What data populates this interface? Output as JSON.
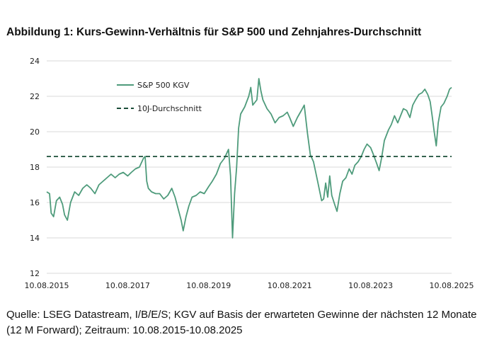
{
  "title": "Abbildung 1: Kurs-Gewinn-Verhältnis für S&P 500 und Zehnjahres-Durchschnitt",
  "caption": "Quelle: LSEG Datastream, I/B/E/S; KGV auf Basis der erwarteten Gewinne der nächsten 12 Monate (12 M Forward); Zeitraum: 10.08.2015-10.08.2025",
  "colors": {
    "series": "#4e9b7b",
    "average": "#1a4d38",
    "grid": "#d9d9d9"
  },
  "chart_data": {
    "type": "line",
    "title": "",
    "xlabel": "",
    "ylabel": "",
    "ylim": [
      12,
      24
    ],
    "yticks": [
      12,
      14,
      16,
      18,
      20,
      22,
      24
    ],
    "xlim": [
      2015.61,
      2025.61
    ],
    "xticks": [
      {
        "x": 2015.61,
        "label": "10.08.2015"
      },
      {
        "x": 2017.61,
        "label": "10.08.2017"
      },
      {
        "x": 2019.61,
        "label": "10.08.2019"
      },
      {
        "x": 2021.61,
        "label": "10.08.2021"
      },
      {
        "x": 2023.61,
        "label": "10.08.2023"
      },
      {
        "x": 2025.61,
        "label": "10.08.2025"
      }
    ],
    "grid": "horizontal",
    "legend_position": "top-left",
    "series": [
      {
        "name": "S&P 500 KGV",
        "style": "solid",
        "points": [
          [
            2015.61,
            16.6
          ],
          [
            2015.68,
            16.5
          ],
          [
            2015.72,
            15.4
          ],
          [
            2015.78,
            15.2
          ],
          [
            2015.85,
            16.1
          ],
          [
            2015.93,
            16.3
          ],
          [
            2016.0,
            15.9
          ],
          [
            2016.05,
            15.3
          ],
          [
            2016.12,
            15.0
          ],
          [
            2016.2,
            16.0
          ],
          [
            2016.3,
            16.6
          ],
          [
            2016.4,
            16.4
          ],
          [
            2016.5,
            16.8
          ],
          [
            2016.6,
            17.0
          ],
          [
            2016.7,
            16.8
          ],
          [
            2016.8,
            16.5
          ],
          [
            2016.9,
            17.0
          ],
          [
            2017.0,
            17.2
          ],
          [
            2017.1,
            17.4
          ],
          [
            2017.2,
            17.6
          ],
          [
            2017.3,
            17.4
          ],
          [
            2017.4,
            17.6
          ],
          [
            2017.5,
            17.7
          ],
          [
            2017.61,
            17.5
          ],
          [
            2017.7,
            17.7
          ],
          [
            2017.8,
            17.9
          ],
          [
            2017.9,
            18.0
          ],
          [
            2018.0,
            18.5
          ],
          [
            2018.04,
            18.6
          ],
          [
            2018.08,
            17.2
          ],
          [
            2018.12,
            16.8
          ],
          [
            2018.2,
            16.6
          ],
          [
            2018.3,
            16.5
          ],
          [
            2018.4,
            16.5
          ],
          [
            2018.5,
            16.2
          ],
          [
            2018.6,
            16.4
          ],
          [
            2018.7,
            16.8
          ],
          [
            2018.78,
            16.3
          ],
          [
            2018.85,
            15.7
          ],
          [
            2018.93,
            15.0
          ],
          [
            2018.98,
            14.4
          ],
          [
            2019.05,
            15.2
          ],
          [
            2019.12,
            15.8
          ],
          [
            2019.2,
            16.3
          ],
          [
            2019.3,
            16.4
          ],
          [
            2019.4,
            16.6
          ],
          [
            2019.5,
            16.5
          ],
          [
            2019.61,
            16.9
          ],
          [
            2019.7,
            17.2
          ],
          [
            2019.8,
            17.6
          ],
          [
            2019.9,
            18.2
          ],
          [
            2020.0,
            18.5
          ],
          [
            2020.1,
            19.0
          ],
          [
            2020.15,
            17.5
          ],
          [
            2020.2,
            14.0
          ],
          [
            2020.25,
            16.5
          ],
          [
            2020.3,
            18.0
          ],
          [
            2020.35,
            20.2
          ],
          [
            2020.4,
            21.0
          ],
          [
            2020.5,
            21.4
          ],
          [
            2020.6,
            22.0
          ],
          [
            2020.65,
            22.5
          ],
          [
            2020.7,
            21.5
          ],
          [
            2020.8,
            21.8
          ],
          [
            2020.85,
            23.0
          ],
          [
            2020.9,
            22.3
          ],
          [
            2020.95,
            21.8
          ],
          [
            2021.05,
            21.3
          ],
          [
            2021.15,
            21.0
          ],
          [
            2021.25,
            20.5
          ],
          [
            2021.35,
            20.8
          ],
          [
            2021.45,
            20.9
          ],
          [
            2021.55,
            21.1
          ],
          [
            2021.61,
            20.8
          ],
          [
            2021.7,
            20.3
          ],
          [
            2021.8,
            20.8
          ],
          [
            2021.9,
            21.2
          ],
          [
            2021.97,
            21.5
          ],
          [
            2022.05,
            19.9
          ],
          [
            2022.12,
            18.7
          ],
          [
            2022.2,
            18.3
          ],
          [
            2022.3,
            17.2
          ],
          [
            2022.4,
            16.1
          ],
          [
            2022.45,
            16.2
          ],
          [
            2022.5,
            17.1
          ],
          [
            2022.55,
            16.3
          ],
          [
            2022.6,
            17.5
          ],
          [
            2022.65,
            16.4
          ],
          [
            2022.72,
            15.9
          ],
          [
            2022.78,
            15.5
          ],
          [
            2022.85,
            16.5
          ],
          [
            2022.92,
            17.2
          ],
          [
            2023.0,
            17.4
          ],
          [
            2023.08,
            17.9
          ],
          [
            2023.15,
            17.6
          ],
          [
            2023.22,
            18.1
          ],
          [
            2023.3,
            18.3
          ],
          [
            2023.38,
            18.6
          ],
          [
            2023.45,
            19.0
          ],
          [
            2023.52,
            19.3
          ],
          [
            2023.61,
            19.1
          ],
          [
            2023.68,
            18.7
          ],
          [
            2023.76,
            18.2
          ],
          [
            2023.82,
            17.8
          ],
          [
            2023.88,
            18.5
          ],
          [
            2023.95,
            19.5
          ],
          [
            2024.05,
            20.1
          ],
          [
            2024.12,
            20.4
          ],
          [
            2024.2,
            20.9
          ],
          [
            2024.28,
            20.5
          ],
          [
            2024.35,
            20.9
          ],
          [
            2024.42,
            21.3
          ],
          [
            2024.5,
            21.2
          ],
          [
            2024.58,
            20.8
          ],
          [
            2024.65,
            21.5
          ],
          [
            2024.72,
            21.8
          ],
          [
            2024.8,
            22.1
          ],
          [
            2024.88,
            22.2
          ],
          [
            2024.95,
            22.4
          ],
          [
            2025.02,
            22.1
          ],
          [
            2025.08,
            21.7
          ],
          [
            2025.13,
            20.9
          ],
          [
            2025.18,
            20.0
          ],
          [
            2025.23,
            19.2
          ],
          [
            2025.28,
            20.5
          ],
          [
            2025.35,
            21.4
          ],
          [
            2025.42,
            21.6
          ],
          [
            2025.5,
            22.0
          ],
          [
            2025.56,
            22.4
          ],
          [
            2025.61,
            22.5
          ]
        ]
      },
      {
        "name": "10J-Durchschnitt",
        "style": "dashed",
        "points": [
          [
            2015.61,
            18.6
          ],
          [
            2025.61,
            18.6
          ]
        ]
      }
    ]
  }
}
